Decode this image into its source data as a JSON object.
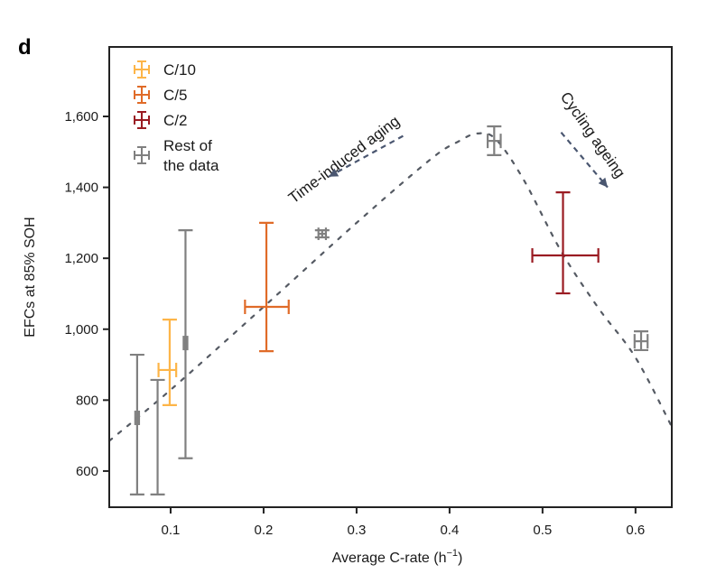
{
  "panel_label": "d",
  "chart_data": {
    "type": "scatter",
    "title": "",
    "xlabel": "Average C-rate (h",
    "xlabel_sup": "−1",
    "xlabel_suffix": ")",
    "ylabel": "EFCs at 85% SOH",
    "xlim": [
      0.034,
      0.639
    ],
    "ylim": [
      498,
      1796
    ],
    "xticks": [
      0.1,
      0.2,
      0.3,
      0.4,
      0.5,
      0.6
    ],
    "xtick_labels": [
      "0.1",
      "0.2",
      "0.3",
      "0.4",
      "0.5",
      "0.6"
    ],
    "yticks": [
      600,
      800,
      1000,
      1200,
      1400,
      1600
    ],
    "ytick_labels": [
      "600",
      "800",
      "1,000",
      "1,200",
      "1,400",
      "1,600"
    ],
    "grid": false,
    "legend": {
      "placement": "top-left",
      "entries": [
        {
          "label": "C/10",
          "color": "#FDB548"
        },
        {
          "label": "C/5",
          "color": "#E06B28"
        },
        {
          "label": "C/2",
          "color": "#9A1B22"
        },
        {
          "label": "Rest of the data",
          "lines": [
            "Rest of",
            "the data"
          ],
          "color": "#808080"
        }
      ]
    },
    "series": [
      {
        "name": "Rest of the data",
        "color": "#808080",
        "points": [
          {
            "x": 0.064,
            "y": 750,
            "y_err": [
              534,
              928
            ],
            "x_err": [
              0.062,
              0.066
            ]
          },
          {
            "x": 0.086,
            "y": 700,
            "y_err": [
              534,
              857
            ],
            "x_err": [
              0.086,
              0.086
            ]
          },
          {
            "x": 0.116,
            "y": 961,
            "y_err": [
              636,
              1279
            ],
            "x_err": [
              0.114,
              0.118
            ]
          },
          {
            "x": 0.263,
            "y": 1269,
            "y_err": [
              1259,
              1279
            ],
            "x_err": [
              0.259,
              0.267
            ]
          },
          {
            "x": 0.448,
            "y": 1531,
            "y_err": [
              1491,
              1572
            ],
            "x_err": [
              0.441,
              0.455
            ]
          },
          {
            "x": 0.606,
            "y": 966,
            "y_err": [
              941,
              994
            ],
            "x_err": [
              0.599,
              0.613
            ]
          }
        ]
      },
      {
        "name": "C/10",
        "color": "#FDB548",
        "points": [
          {
            "x": 0.099,
            "y": 885,
            "y_err": [
              786,
              1027
            ],
            "x_err": [
              0.087,
              0.106
            ]
          }
        ]
      },
      {
        "name": "C/5",
        "color": "#E06B28",
        "points": [
          {
            "x": 0.203,
            "y": 1063,
            "y_err": [
              938,
              1300
            ],
            "x_err": [
              0.18,
              0.227
            ]
          }
        ]
      },
      {
        "name": "C/2",
        "color": "#9A1B22",
        "points": [
          {
            "x": 0.522,
            "y": 1208,
            "y_err": [
              1101,
              1386
            ],
            "x_err": [
              0.489,
              0.56
            ]
          }
        ]
      }
    ],
    "trend_curve": {
      "style": "dashed",
      "color": "#555a63",
      "x": [
        0.034,
        0.1,
        0.2,
        0.3,
        0.38,
        0.41,
        0.43,
        0.45,
        0.48,
        0.52,
        0.56,
        0.6,
        0.639
      ],
      "y": [
        685,
        829,
        1063,
        1300,
        1480,
        1530,
        1552,
        1535,
        1420,
        1220,
        1060,
        920,
        725
      ]
    },
    "annotations": [
      {
        "text": "Time-induced aging",
        "arrow_from": [
          0.35,
          1545
        ],
        "arrow_to": [
          0.27,
          1430
        ],
        "arrow_color": "#4a5670"
      },
      {
        "text": "Cycling ageing",
        "arrow_from": [
          0.52,
          1555
        ],
        "arrow_to": [
          0.57,
          1400
        ],
        "arrow_color": "#4a5670"
      }
    ]
  }
}
